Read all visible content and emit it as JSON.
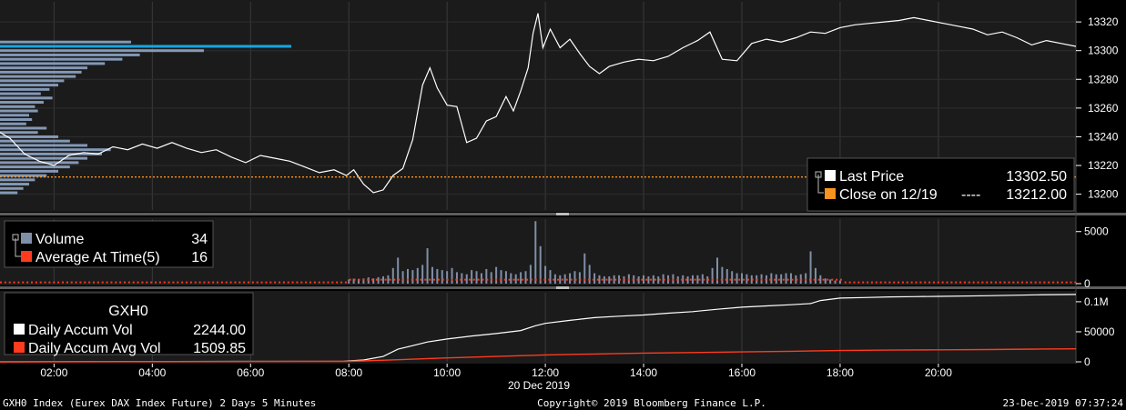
{
  "colors": {
    "background": "#000000",
    "panel": "#1b1b1b",
    "separator": "#6b6b6b",
    "price_line": "#ffffff",
    "close_line": "#f7931e",
    "volume_bar": "#7f8fa8",
    "avg_marker": "#ff3b1f",
    "poc_line": "#19a6e0",
    "profile_bar": "#8fa6c6",
    "text": "#ffffff"
  },
  "chart_data": [
    {
      "type": "line",
      "panel": "price",
      "y_axis_ticks": [
        "13320",
        "13300",
        "13280",
        "13260",
        "13240",
        "13220",
        "13200"
      ],
      "ylim": [
        13189,
        13334
      ],
      "x_axis_ticks": [
        "02:00",
        "04:00",
        "06:00",
        "08:00",
        "10:00",
        "12:00",
        "14:00",
        "16:00",
        "18:00",
        "20:00"
      ],
      "xlim_hours": [
        0.9,
        22.8
      ],
      "series": [
        {
          "name": "Last Price",
          "x": [
            0.9,
            1.1,
            1.4,
            1.7,
            2.0,
            2.3,
            2.6,
            2.9,
            3.2,
            3.5,
            3.8,
            4.1,
            4.4,
            4.7,
            5.0,
            5.3,
            5.6,
            5.9,
            6.2,
            6.5,
            6.8,
            7.1,
            7.4,
            7.7,
            7.95,
            8.1,
            8.3,
            8.5,
            8.7,
            8.9,
            9.1,
            9.3,
            9.5,
            9.65,
            9.8,
            10.0,
            10.2,
            10.4,
            10.6,
            10.8,
            11.0,
            11.2,
            11.35,
            11.5,
            11.65,
            11.75,
            11.85,
            11.95,
            12.1,
            12.3,
            12.5,
            12.7,
            12.9,
            13.1,
            13.3,
            13.6,
            13.9,
            14.2,
            14.5,
            14.8,
            15.1,
            15.35,
            15.6,
            15.9,
            16.2,
            16.5,
            16.8,
            17.1,
            17.4,
            17.7,
            18.0,
            18.3,
            18.6,
            18.9,
            19.2,
            19.5,
            19.8,
            20.1,
            20.4,
            20.7,
            21.0,
            21.3,
            21.6,
            21.9,
            22.2,
            22.5,
            22.8
          ],
          "y": [
            13243,
            13239,
            13228,
            13223,
            13220,
            13227,
            13229,
            13228,
            13233,
            13231,
            13235,
            13232,
            13236,
            13232,
            13229,
            13231,
            13226,
            13222,
            13227,
            13225,
            13223,
            13219,
            13215,
            13217,
            13213,
            13217,
            13207,
            13201,
            13203,
            13213,
            13218,
            13238,
            13276,
            13288,
            13274,
            13262,
            13261,
            13236,
            13239,
            13251,
            13254,
            13268,
            13258,
            13272,
            13288,
            13312,
            13326,
            13302,
            13315,
            13302,
            13308,
            13298,
            13289,
            13284,
            13289,
            13292,
            13294,
            13293,
            13296,
            13302,
            13307,
            13313,
            13294,
            13293,
            13305,
            13308,
            13306,
            13309,
            13313,
            13312,
            13316,
            13318,
            13319,
            13320,
            13321,
            13323,
            13321,
            13319,
            13317,
            13315,
            13311,
            13313,
            13309,
            13304,
            13307,
            13305,
            13303
          ]
        },
        {
          "name": "Close on 12/19",
          "x": [
            0.9,
            22.8
          ],
          "y": [
            13212,
            13212
          ]
        }
      ],
      "volume_profile": {
        "price_levels": [
          13306,
          13303,
          13300,
          13297,
          13294,
          13291,
          13288,
          13285,
          13282,
          13279,
          13276,
          13273,
          13270,
          13267,
          13264,
          13261,
          13258,
          13255,
          13252,
          13249,
          13246,
          13243,
          13240,
          13237,
          13234,
          13231,
          13228,
          13225,
          13222,
          13219,
          13216,
          13213,
          13210,
          13207,
          13204,
          13201
        ],
        "relative_volume": [
          0.45,
          1.0,
          0.7,
          0.48,
          0.42,
          0.36,
          0.3,
          0.28,
          0.26,
          0.22,
          0.2,
          0.17,
          0.14,
          0.18,
          0.15,
          0.12,
          0.13,
          0.1,
          0.11,
          0.09,
          0.16,
          0.13,
          0.2,
          0.24,
          0.3,
          0.38,
          0.35,
          0.3,
          0.27,
          0.24,
          0.2,
          0.16,
          0.12,
          0.1,
          0.08,
          0.06
        ],
        "point_of_control": 13303
      },
      "legend": [
        {
          "label": "Last Price",
          "value": "13302.50",
          "color": "#ffffff"
        },
        {
          "label": "Close on 12/19",
          "dashes": "----",
          "value": "13212.00",
          "color": "#f7931e"
        }
      ],
      "legend_position": "bottom-right"
    },
    {
      "type": "bar",
      "panel": "volume",
      "y_axis_ticks": [
        "5000",
        "0"
      ],
      "ylim": [
        0,
        6200
      ],
      "xlim_hours": [
        0.9,
        22.8
      ],
      "series": [
        {
          "name": "Volume",
          "x": [
            8.0,
            8.1,
            8.2,
            8.3,
            8.4,
            8.5,
            8.6,
            8.7,
            8.8,
            8.9,
            9.0,
            9.1,
            9.2,
            9.3,
            9.4,
            9.5,
            9.6,
            9.7,
            9.8,
            9.9,
            10.0,
            10.1,
            10.2,
            10.3,
            10.4,
            10.5,
            10.6,
            10.7,
            10.8,
            10.9,
            11.0,
            11.1,
            11.2,
            11.3,
            11.4,
            11.5,
            11.6,
            11.7,
            11.8,
            11.9,
            12.0,
            12.1,
            12.2,
            12.3,
            12.4,
            12.5,
            12.6,
            12.7,
            12.8,
            12.9,
            13.0,
            13.1,
            13.2,
            13.3,
            13.4,
            13.5,
            13.6,
            13.7,
            13.8,
            13.9,
            14.0,
            14.1,
            14.2,
            14.3,
            14.4,
            14.5,
            14.6,
            14.7,
            14.8,
            14.9,
            15.0,
            15.1,
            15.2,
            15.3,
            15.4,
            15.5,
            15.6,
            15.7,
            15.8,
            15.9,
            16.0,
            16.1,
            16.2,
            16.3,
            16.4,
            16.5,
            16.6,
            16.7,
            16.8,
            16.9,
            17.0,
            17.1,
            17.2,
            17.3,
            17.4,
            17.5,
            17.6,
            17.7,
            17.8,
            17.9,
            18.0
          ],
          "values": [
            400,
            480,
            450,
            500,
            600,
            500,
            620,
            700,
            800,
            1500,
            2500,
            1200,
            1400,
            1300,
            1500,
            1800,
            3400,
            1600,
            1400,
            1300,
            1200,
            1500,
            1100,
            1000,
            900,
            1300,
            1200,
            1000,
            1400,
            1100,
            1600,
            1300,
            1200,
            1000,
            900,
            1100,
            1200,
            1800,
            6000,
            3600,
            1700,
            1300,
            900,
            800,
            900,
            1000,
            1200,
            1100,
            2900,
            1800,
            1000,
            800,
            700,
            700,
            800,
            800,
            700,
            900,
            800,
            700,
            800,
            700,
            800,
            700,
            900,
            800,
            900,
            700,
            800,
            700,
            800,
            800,
            900,
            700,
            1500,
            2500,
            1600,
            1400,
            1200,
            1000,
            1000,
            900,
            800,
            800,
            900,
            800,
            1000,
            900,
            900,
            1000,
            1000,
            800,
            900,
            1000,
            3100,
            1500,
            800,
            500,
            400,
            300,
            300
          ]
        },
        {
          "name": "Average At Time(5)",
          "values_note_level": 120
        }
      ],
      "legend": [
        {
          "label": "Volume",
          "value": "34",
          "color": "#7f8fa8"
        },
        {
          "label": "Average At Time(5)",
          "value": "16",
          "color": "#ff3b1f"
        }
      ],
      "legend_position": "top-left"
    },
    {
      "type": "area",
      "panel": "accumulated volume",
      "y_axis_ticks": [
        "0.1M",
        "50000",
        "0"
      ],
      "ylim": [
        0,
        115000
      ],
      "xlim_hours": [
        0.9,
        22.8
      ],
      "series": [
        {
          "name": "Daily Accum Vol",
          "x": [
            0.9,
            7.9,
            8.3,
            8.7,
            9.0,
            9.3,
            9.6,
            10.0,
            10.5,
            11.0,
            11.5,
            11.8,
            12.0,
            12.5,
            13.0,
            13.5,
            14.0,
            14.5,
            15.0,
            15.5,
            16.0,
            16.5,
            17.0,
            17.4,
            17.6,
            18.0,
            18.5,
            19.0,
            19.5,
            20.0,
            21.0,
            22.0,
            22.8
          ],
          "y": [
            0,
            1000,
            3000,
            9000,
            21000,
            27000,
            33000,
            38000,
            43000,
            47000,
            52000,
            60000,
            64000,
            69000,
            73500,
            76000,
            78000,
            81000,
            83500,
            87500,
            91000,
            93000,
            95000,
            97000,
            102000,
            106000,
            107000,
            108000,
            108500,
            109000,
            110000,
            111500,
            112200
          ]
        },
        {
          "name": "Daily Accum Avg Vol",
          "x": [
            0.9,
            8.0,
            9.0,
            10.0,
            11.0,
            12.0,
            13.0,
            14.0,
            15.0,
            16.0,
            17.0,
            18.0,
            19.0,
            20.0,
            21.0,
            22.0,
            22.8
          ],
          "y": [
            0,
            800,
            3500,
            6500,
            9000,
            11500,
            13000,
            14500,
            15500,
            16500,
            17500,
            18800,
            19500,
            20000,
            20500,
            21200,
            21600
          ]
        }
      ],
      "legend_title": "GXH0",
      "legend": [
        {
          "label": "Daily Accum Vol",
          "value": "2244.00",
          "color": "#ffffff"
        },
        {
          "label": "Daily Accum Avg Vol",
          "value": "1509.85",
          "color": "#ff3b1f"
        }
      ],
      "legend_position": "top-left"
    }
  ],
  "x_axis": {
    "ticks": [
      "02:00",
      "04:00",
      "06:00",
      "08:00",
      "10:00",
      "12:00",
      "14:00",
      "16:00",
      "18:00",
      "20:00"
    ],
    "date_label": "20 Dec 2019"
  },
  "footer": {
    "left": "GXH0 Index (Eurex DAX Index Future) 2 Days 5 Minutes",
    "center": "Copyright© 2019 Bloomberg Finance L.P.",
    "right": "23-Dec-2019 07:37:24"
  }
}
